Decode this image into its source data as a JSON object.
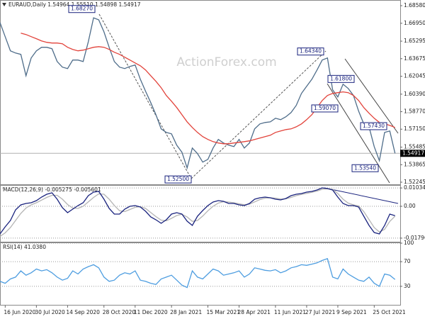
{
  "chart_data": [
    {
      "type": "line",
      "title": "EURAUD,Daily  1.54964 1.55510 1.54898 1.54917",
      "watermark": "ActionForex.com",
      "xlim": [
        0,
        77
      ],
      "x": [
        0,
        1,
        2,
        3,
        4,
        5,
        6,
        7,
        8,
        9,
        10,
        11,
        12,
        13,
        14,
        15,
        16,
        17,
        18,
        19,
        20,
        21,
        22,
        23,
        24,
        25,
        26,
        27,
        28,
        29,
        30,
        31,
        32,
        33,
        34,
        35,
        36,
        37,
        38,
        39,
        40,
        41,
        42,
        43,
        44,
        45,
        46,
        47,
        48,
        49,
        50,
        51,
        52,
        53,
        54,
        55,
        56,
        57,
        58,
        59,
        60,
        61,
        62,
        63,
        64,
        65,
        66,
        67,
        68,
        69,
        70,
        71,
        72,
        73,
        74,
        75,
        76
      ],
      "series": [
        {
          "color": "#4f6d8a",
          "values": [
            1.6702,
            1.6571,
            1.644,
            1.642,
            1.6407,
            1.621,
            1.6374,
            1.644,
            1.6473,
            1.6473,
            1.646,
            1.6341,
            1.6289,
            1.6276,
            1.6355,
            1.6355,
            1.6341,
            1.6525,
            1.6746,
            1.6727,
            1.6615,
            1.6473,
            1.6341,
            1.6289,
            1.6276,
            1.6296,
            1.6309,
            1.6177,
            1.6066,
            1.5961,
            1.585,
            1.5718,
            1.5685,
            1.5672,
            1.5567,
            1.5502,
            1.5357,
            1.5541,
            1.5489,
            1.541,
            1.5436,
            1.5541,
            1.562,
            1.5587,
            1.5567,
            1.5554,
            1.562,
            1.5541,
            1.5587,
            1.5718,
            1.5764,
            1.5777,
            1.5783,
            1.5816,
            1.5803,
            1.583,
            1.5869,
            1.5935,
            1.6046,
            1.6112,
            1.6177,
            1.6263,
            1.6355,
            1.6374,
            1.6079,
            1.6013,
            1.6131,
            1.6092,
            1.6027,
            1.5882,
            1.5764,
            1.5737,
            1.5554,
            1.5423,
            1.5685,
            1.5698,
            1.54917
          ]
        },
        {
          "color": "#e2433b",
          "values": [
            null,
            null,
            null,
            null,
            1.6604,
            1.6591,
            1.6571,
            1.6552,
            1.6532,
            1.6519,
            1.6512,
            1.6512,
            1.6506,
            1.6473,
            1.6453,
            1.644,
            1.6447,
            1.646,
            1.6473,
            1.6479,
            1.6473,
            1.6453,
            1.6427,
            1.6407,
            1.6381,
            1.6355,
            1.6328,
            1.6302,
            1.6263,
            1.621,
            1.6158,
            1.6099,
            1.6027,
            1.5974,
            1.5915,
            1.585,
            1.5783,
            1.5731,
            1.5685,
            1.5646,
            1.562,
            1.56,
            1.5587,
            1.558,
            1.558,
            1.5587,
            1.5593,
            1.56,
            1.5607,
            1.562,
            1.5633,
            1.5646,
            1.5659,
            1.5685,
            1.5698,
            1.5711,
            1.5718,
            1.5737,
            1.5764,
            1.5803,
            1.585,
            1.5915,
            1.598,
            1.6027,
            1.6046,
            1.6053,
            1.606,
            1.6053,
            1.6027,
            1.598,
            1.5915,
            1.5863,
            1.5816,
            1.5777,
            1.5764,
            1.575,
            1.5731
          ]
        }
      ],
      "ylim": [
        1.52245,
        1.6858
      ],
      "yticks": [
        {
          "value": 1.6858,
          "label": "1.68580"
        },
        {
          "value": 1.6695,
          "label": "1.66950"
        },
        1.65295,
        1.63675,
        1.62045,
        {
          "value": 1.6039,
          "label": "1.60390"
        },
        {
          "value": 1.5877,
          "label": "1.58770"
        },
        {
          "value": 1.5715,
          "label": "1.57150"
        },
        1.55485,
        1.53865,
        1.52245
      ],
      "grid": false,
      "last_price": 1.54917,
      "annotations": [
        {
          "value": 1.6827,
          "label": "1.68270"
        },
        {
          "value": 1.6434,
          "label": "1.64340"
        },
        {
          "value": 1.618,
          "label": "1.61800"
        },
        {
          "value": 1.5907,
          "label": "1.59070"
        },
        {
          "value": 1.5743,
          "label": "1.57430"
        },
        {
          "value": 1.5354,
          "label": "1.53540"
        },
        {
          "value": 1.525,
          "label": "1.52500"
        }
      ]
    },
    {
      "type": "line",
      "title": "MACD(12,26,9) -0.005275 -0.005601",
      "xlim": [
        0,
        77
      ],
      "x": [
        0,
        1,
        2,
        3,
        4,
        5,
        6,
        7,
        8,
        9,
        10,
        11,
        12,
        13,
        14,
        15,
        16,
        17,
        18,
        19,
        20,
        21,
        22,
        23,
        24,
        25,
        26,
        27,
        28,
        29,
        30,
        31,
        32,
        33,
        34,
        35,
        36,
        37,
        38,
        39,
        40,
        41,
        42,
        43,
        44,
        45,
        46,
        47,
        48,
        49,
        50,
        51,
        52,
        53,
        54,
        55,
        56,
        57,
        58,
        59,
        60,
        61,
        62,
        63,
        64,
        65,
        66,
        67,
        68,
        69,
        70,
        71,
        72,
        73,
        74,
        75,
        76
      ],
      "series": [
        {
          "color": "#b4b4b4",
          "values": [
            -0.017,
            -0.015,
            -0.012,
            -0.008,
            -0.004,
            -0.001,
            0.0008,
            0.002,
            0.0035,
            0.005,
            0.0062,
            0.0062,
            0.004,
            0.001,
            -0.001,
            -0.0012,
            0,
            0.0025,
            0.005,
            0.007,
            0.0068,
            0.004,
            0.0005,
            -0.0025,
            -0.003,
            -0.0018,
            -0.0006,
            -0.0002,
            -0.0012,
            -0.0035,
            -0.0058,
            -0.0078,
            -0.0082,
            -0.0068,
            -0.0052,
            -0.0045,
            -0.006,
            -0.0085,
            -0.008,
            -0.0055,
            -0.0025,
            0,
            0.0018,
            0.0026,
            0.0024,
            0.002,
            0.0014,
            0.0009,
            0.0012,
            0.0025,
            0.0038,
            0.0046,
            0.0048,
            0.0046,
            0.0041,
            0.0042,
            0.005,
            0.006,
            0.0067,
            0.0073,
            0.0079,
            0.0086,
            0.0096,
            0.0099,
            0.0096,
            0.0072,
            0.004,
            0.0018,
            0.0008,
            0.0002,
            -0.003,
            -0.0075,
            -0.012,
            -0.0145,
            -0.013,
            -0.0085,
            -0.005601
          ]
        },
        {
          "color": "#1a237e",
          "values": [
            -0.0156,
            -0.0116,
            -0.008,
            -0.002,
            0.0008,
            0.0016,
            0.002,
            0.0032,
            0.0052,
            0.0068,
            0.0076,
            0.004,
            -0.0008,
            -0.0036,
            -0.0016,
            0.0004,
            0.002,
            0.006,
            0.008,
            0.0084,
            0.004,
            -0.0012,
            -0.0044,
            -0.0044,
            -0.0016,
            0,
            0.0004,
            -0.0004,
            -0.0028,
            -0.006,
            -0.0076,
            -0.0096,
            -0.0076,
            -0.0044,
            -0.0036,
            -0.0044,
            -0.0084,
            -0.0108,
            -0.0056,
            -0.0024,
            0.0004,
            0.0024,
            0.0032,
            0.0028,
            0.0016,
            0.0016,
            0.0008,
            0.0004,
            0.0016,
            0.004,
            0.0048,
            0.0052,
            0.0048,
            0.004,
            0.0036,
            0.0044,
            0.006,
            0.0068,
            0.0072,
            0.008,
            0.0084,
            0.0092,
            0.0104,
            0.01,
            0.0092,
            0.0052,
            0.0016,
            0.0004,
            0.0004,
            -0.0004,
            -0.0056,
            -0.0108,
            -0.0148,
            -0.0156,
            -0.0108,
            -0.0044,
            -0.005275
          ]
        }
      ],
      "ylim": [
        -0.0196,
        0.0112
      ],
      "yticks": [
        0.010341,
        {
          "value": 0,
          "label": "0.00"
        },
        -0.017968
      ],
      "grid": true
    },
    {
      "type": "line",
      "title": "RSI(14) 41.0380",
      "xlim": [
        0,
        77
      ],
      "x": [
        0,
        1,
        2,
        3,
        4,
        5,
        6,
        7,
        8,
        9,
        10,
        11,
        12,
        13,
        14,
        15,
        16,
        17,
        18,
        19,
        20,
        21,
        22,
        23,
        24,
        25,
        26,
        27,
        28,
        29,
        30,
        31,
        32,
        33,
        34,
        35,
        36,
        37,
        38,
        39,
        40,
        41,
        42,
        43,
        44,
        45,
        46,
        47,
        48,
        49,
        50,
        51,
        52,
        53,
        54,
        55,
        56,
        57,
        58,
        59,
        60,
        61,
        62,
        63,
        64,
        65,
        66,
        67,
        68,
        69,
        70,
        71,
        72,
        73,
        74,
        75,
        76
      ],
      "series": [
        {
          "color": "#4d9de0",
          "values": [
            38,
            35,
            42,
            45,
            55,
            48,
            52,
            58,
            55,
            57,
            52,
            45,
            40,
            43,
            55,
            50,
            58,
            62,
            65,
            60,
            45,
            38,
            40,
            48,
            52,
            50,
            55,
            40,
            38,
            35,
            33,
            42,
            45,
            48,
            40,
            32,
            28,
            55,
            45,
            42,
            50,
            58,
            55,
            48,
            50,
            52,
            55,
            45,
            50,
            60,
            58,
            56,
            55,
            57,
            52,
            55,
            60,
            62,
            65,
            64,
            66,
            68,
            72,
            75,
            45,
            42,
            58,
            50,
            45,
            40,
            38,
            45,
            35,
            30,
            50,
            48,
            41.038
          ]
        }
      ],
      "ylim": [
        0,
        100
      ],
      "yticks": [
        100,
        70,
        30
      ],
      "grid": true,
      "xticks": [
        {
          "value": 1,
          "label": "16 Jun 2020"
        },
        {
          "value": 7,
          "label": "30 Jul 2020"
        },
        {
          "value": 13,
          "label": "14 Sep 2020"
        },
        {
          "value": 20,
          "label": "28 Oct 2020"
        },
        {
          "value": 26,
          "label": "11 Dec 2020"
        },
        {
          "value": 33,
          "label": "28 Jan 2021"
        },
        {
          "value": 40,
          "label": "15 Mar 2021"
        },
        {
          "value": 46,
          "label": "28 Apr 2021"
        },
        {
          "value": 53,
          "label": "11 Jun 2021"
        },
        {
          "value": 59,
          "label": "27 Jul 2021"
        },
        {
          "value": 65,
          "label": "9 Sep 2021"
        },
        {
          "value": 72,
          "label": "25 Oct 2021"
        }
      ]
    }
  ]
}
